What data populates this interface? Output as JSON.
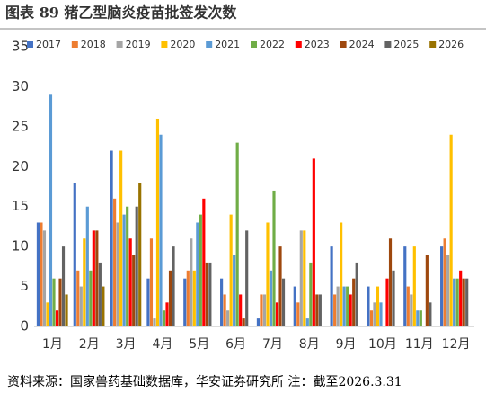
{
  "title": "图表 89 猪乙型脑炎疫苗批签发次数",
  "chart_data": {
    "type": "bar",
    "categories": [
      "1月",
      "2月",
      "3月",
      "4月",
      "5月",
      "6月",
      "7月",
      "8月",
      "9月",
      "10月",
      "11月",
      "12月"
    ],
    "series": [
      {
        "name": "2017",
        "color": "#4472c4",
        "values": [
          13,
          18,
          22,
          6,
          6,
          6,
          1,
          5,
          10,
          5,
          10,
          10
        ]
      },
      {
        "name": "2018",
        "color": "#ed7d31",
        "values": [
          13,
          7,
          16,
          11,
          7,
          4,
          4,
          3,
          4,
          2,
          5,
          11
        ]
      },
      {
        "name": "2019",
        "color": "#a5a5a5",
        "values": [
          12,
          5,
          13,
          1,
          11,
          2,
          4,
          12,
          5,
          3,
          4,
          9
        ]
      },
      {
        "name": "2020",
        "color": "#ffc000",
        "values": [
          3,
          11,
          22,
          26,
          7,
          14,
          13,
          12,
          13,
          5,
          10,
          24
        ]
      },
      {
        "name": "2021",
        "color": "#5b9bd5",
        "values": [
          29,
          15,
          14,
          24,
          13,
          9,
          7,
          1,
          5,
          3,
          2,
          6
        ]
      },
      {
        "name": "2022",
        "color": "#70ad47",
        "values": [
          6,
          7,
          15,
          2,
          14,
          23,
          17,
          8,
          5,
          0,
          2,
          6
        ]
      },
      {
        "name": "2023",
        "color": "#ff0000",
        "values": [
          2,
          12,
          11,
          3,
          16,
          4,
          3,
          21,
          4,
          6,
          0,
          7
        ]
      },
      {
        "name": "2024",
        "color": "#9e480e",
        "values": [
          6,
          12,
          9,
          7,
          8,
          1,
          10,
          4,
          6,
          11,
          9,
          6
        ]
      },
      {
        "name": "2025",
        "color": "#636363",
        "values": [
          10,
          8,
          15,
          10,
          8,
          12,
          6,
          4,
          8,
          7,
          3,
          6
        ]
      },
      {
        "name": "2026",
        "color": "#997300",
        "values": [
          4,
          5,
          18,
          null,
          null,
          null,
          null,
          null,
          null,
          null,
          null,
          null
        ]
      }
    ],
    "ylim": [
      0,
      35
    ],
    "yticks": [
      0,
      5,
      10,
      15,
      20,
      25,
      30,
      35
    ],
    "grid": false
  },
  "source": "资料来源：国家兽药基础数据库，华安证券研究所 注：截至2026.3.31"
}
